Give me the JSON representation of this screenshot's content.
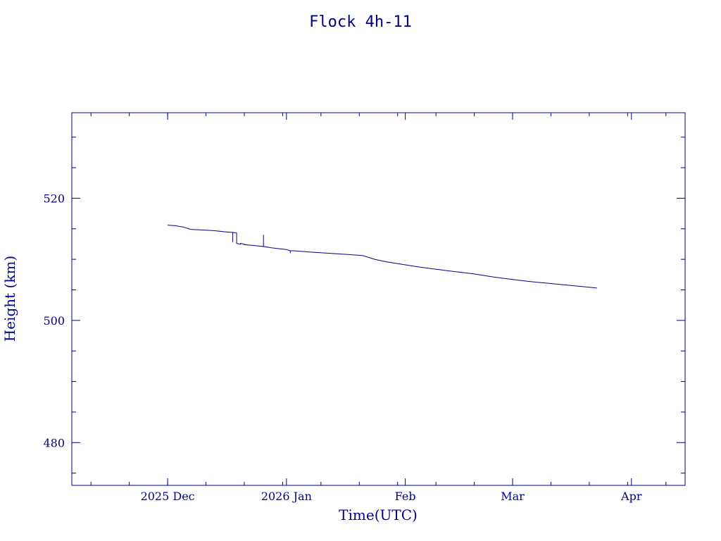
{
  "chart_data": {
    "type": "line",
    "title": "Flock 4h-11",
    "xlabel": "Time(UTC)",
    "ylabel": "Height (km)",
    "color": "#00008b",
    "xlim": [
      "2025-11-06",
      "2026-04-15"
    ],
    "ylim": [
      473,
      534
    ],
    "x_ticks": [
      {
        "date": "2025-12-01",
        "label": "2025 Dec"
      },
      {
        "date": "2026-01-01",
        "label": "2026 Jan"
      },
      {
        "date": "2026-02-01",
        "label": "Feb"
      },
      {
        "date": "2026-03-01",
        "label": "Mar"
      },
      {
        "date": "2026-04-01",
        "label": "Apr"
      }
    ],
    "y_ticks": [
      480,
      500,
      520
    ],
    "series": [
      {
        "x": [
          "2025-12-01",
          "2025-12-03",
          "2025-12-05",
          "2025-12-07",
          "2025-12-10",
          "2025-12-13",
          "2025-12-16",
          "2025-12-18",
          "2025-12-18",
          "2025-12-18",
          "2025-12-19",
          "2025-12-19",
          "2025-12-20",
          "2025-12-20",
          "2025-12-21",
          "2025-12-21",
          "2025-12-23",
          "2025-12-26",
          "2025-12-26",
          "2025-12-26",
          "2025-12-28",
          "2026-01-01",
          "2026-01-02",
          "2026-01-02",
          "2026-01-02",
          "2026-01-03",
          "2026-01-07",
          "2026-01-12",
          "2026-01-17",
          "2026-01-21",
          "2026-01-24",
          "2026-01-27",
          "2026-01-31",
          "2026-02-05",
          "2026-02-10",
          "2026-02-15",
          "2026-02-19",
          "2026-02-20",
          "2026-02-24",
          "2026-03-01",
          "2026-03-05",
          "2026-03-10",
          "2026-03-15",
          "2026-03-20",
          "2026-03-23"
        ],
        "y": [
          515.6,
          515.5,
          515.3,
          514.9,
          514.8,
          514.7,
          514.5,
          514.4,
          512.8,
          514.4,
          514.3,
          512.6,
          512.5,
          512.6,
          512.5,
          512.4,
          512.3,
          512.1,
          514.0,
          512.1,
          511.9,
          511.6,
          511.4,
          511.0,
          511.4,
          511.4,
          511.2,
          511.0,
          510.8,
          510.6,
          510.0,
          509.6,
          509.2,
          508.7,
          508.3,
          507.9,
          507.6,
          507.5,
          507.1,
          506.7,
          506.4,
          506.1,
          505.8,
          505.5,
          505.3
        ]
      }
    ]
  }
}
